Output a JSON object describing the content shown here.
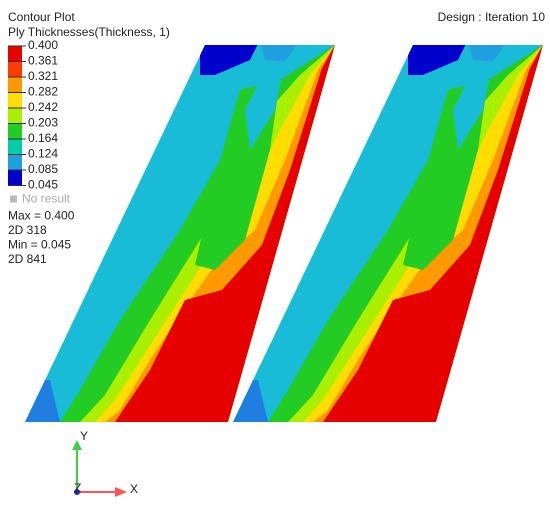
{
  "header": {
    "title": "Contour Plot",
    "subtitle": "Ply Thicknesses(Thickness, 1)",
    "iteration": "Design : Iteration 10"
  },
  "legend": {
    "labels": [
      "0.400",
      "0.361",
      "0.321",
      "0.282",
      "0.242",
      "0.203",
      "0.164",
      "0.124",
      "0.085",
      "0.045"
    ],
    "colors": [
      "#e60000",
      "#ff3c00",
      "#ff9900",
      "#ffdd00",
      "#aaee00",
      "#22cc22",
      "#00ccaa",
      "#1e9fe0",
      "#0000cc"
    ],
    "no_result": "No result"
  },
  "stats": [
    "Max = 0.400",
    "2D 318",
    "Min = 0.045",
    "2D 841"
  ],
  "triad": {
    "x": "X",
    "y": "Y",
    "z": "Z"
  }
}
